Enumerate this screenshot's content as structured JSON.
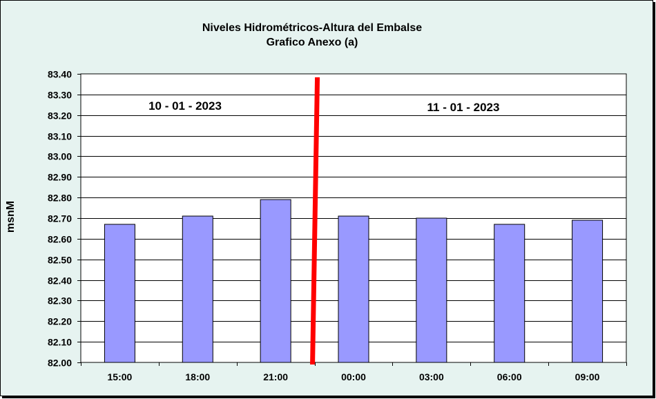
{
  "chart_data": {
    "type": "bar",
    "title": "Niveles Hidrométricos-Altura del Embalse",
    "subtitle": "Grafico Anexo (a)",
    "ylabel": "msnM",
    "xlabel": "",
    "categories": [
      "15:00",
      "18:00",
      "21:00",
      "00:00",
      "03:00",
      "06:00",
      "09:00"
    ],
    "values": [
      82.67,
      82.71,
      82.79,
      82.71,
      82.7,
      82.67,
      82.69
    ],
    "ylim": [
      82.0,
      83.4
    ],
    "ytick_step": 0.1,
    "grid": true,
    "legend": "none",
    "bar_color": "#9999ff",
    "divider_color": "#ff0000",
    "annotations": [
      {
        "text": "10 - 01 - 2023",
        "date_group": "left"
      },
      {
        "text": "11 - 01 - 2023",
        "date_group": "right"
      }
    ],
    "divider_between_categories": [
      "21:00",
      "00:00"
    ]
  }
}
